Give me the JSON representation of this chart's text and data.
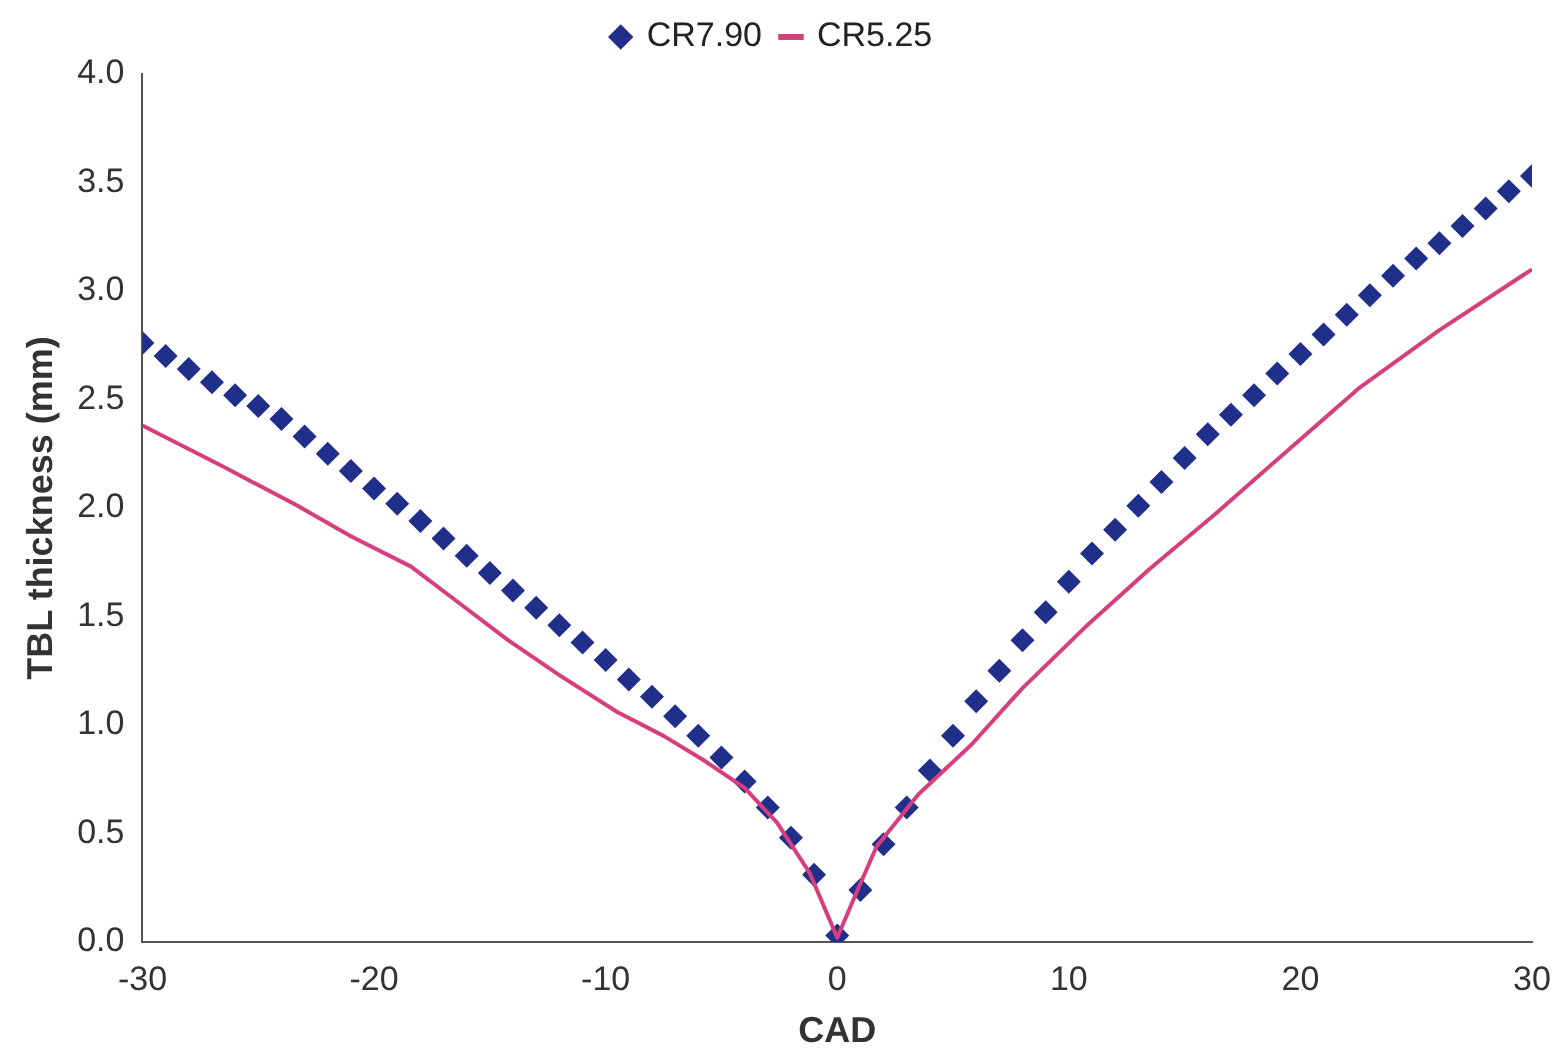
{
  "chart_data": {
    "type": "line",
    "xlabel": "CAD",
    "ylabel": "TBL thickness (mm)",
    "legend": "top",
    "grid": false,
    "xlim": [
      -30,
      30
    ],
    "xticks": [
      -30,
      -20,
      -10,
      0,
      10,
      20,
      30
    ],
    "ylim": [
      0,
      4
    ],
    "yticks": [
      {
        "value": 0,
        "label": "0.0"
      },
      {
        "value": 0.5,
        "label": "0.5"
      },
      {
        "value": 1,
        "label": "1.0"
      },
      {
        "value": 1.5,
        "label": "1.5"
      },
      {
        "value": 2,
        "label": "2.0"
      },
      {
        "value": 2.5,
        "label": "2.5"
      },
      {
        "value": 3,
        "label": "3.0"
      },
      {
        "value": 3.5,
        "label": "3.5"
      },
      {
        "value": 4,
        "label": "4.0"
      }
    ],
    "series": [
      {
        "name": "CR7.90",
        "type": "scatter",
        "marker": "diamond",
        "color": "#1f2f8a",
        "x": [
          -30,
          -29,
          -28,
          -27,
          -26,
          -25,
          -24,
          -23,
          -22,
          -21,
          -20,
          -19,
          -18,
          -17,
          -16,
          -15,
          -14,
          -13,
          -12,
          -11,
          -10,
          -9,
          -8,
          -7,
          -6,
          -5,
          -4,
          -3,
          -2,
          -1,
          0,
          1,
          2,
          3,
          4,
          5,
          6,
          7,
          8,
          9,
          10,
          11,
          12,
          13,
          14,
          15,
          16,
          17,
          18,
          19,
          20,
          21,
          22,
          23,
          24,
          25,
          26,
          27,
          28,
          29,
          30
        ],
        "values": [
          2.76,
          2.7,
          2.64,
          2.58,
          2.52,
          2.47,
          2.41,
          2.33,
          2.25,
          2.17,
          2.09,
          2.02,
          1.94,
          1.86,
          1.78,
          1.7,
          1.62,
          1.54,
          1.46,
          1.38,
          1.3,
          1.21,
          1.13,
          1.04,
          0.95,
          0.85,
          0.74,
          0.62,
          0.48,
          0.31,
          0.03,
          0.24,
          0.45,
          0.62,
          0.79,
          0.95,
          1.11,
          1.25,
          1.39,
          1.52,
          1.66,
          1.79,
          1.9,
          2.01,
          2.12,
          2.23,
          2.34,
          2.43,
          2.52,
          2.62,
          2.71,
          2.8,
          2.89,
          2.98,
          3.07,
          3.15,
          3.22,
          3.3,
          3.38,
          3.46,
          3.53
        ]
      },
      {
        "name": "CR5.25",
        "marker": "none",
        "line_style": "solid",
        "color": "#d63f7e",
        "x": [
          -30,
          -26.5,
          -23.3,
          -21,
          -18.4,
          -16.3,
          -14.2,
          -12,
          -9.5,
          -7.5,
          -5.8,
          -4,
          -2.6,
          -1.2,
          0,
          0.8,
          1.7,
          3.5,
          5.8,
          8,
          10.7,
          13.5,
          16.3,
          19.5,
          22.5,
          26,
          30
        ],
        "values": [
          2.38,
          2.19,
          2.01,
          1.87,
          1.73,
          1.56,
          1.39,
          1.23,
          1.06,
          0.95,
          0.84,
          0.71,
          0.55,
          0.32,
          0.02,
          0.22,
          0.44,
          0.68,
          0.91,
          1.17,
          1.45,
          1.72,
          1.97,
          2.27,
          2.55,
          2.82,
          3.1
        ]
      }
    ]
  }
}
